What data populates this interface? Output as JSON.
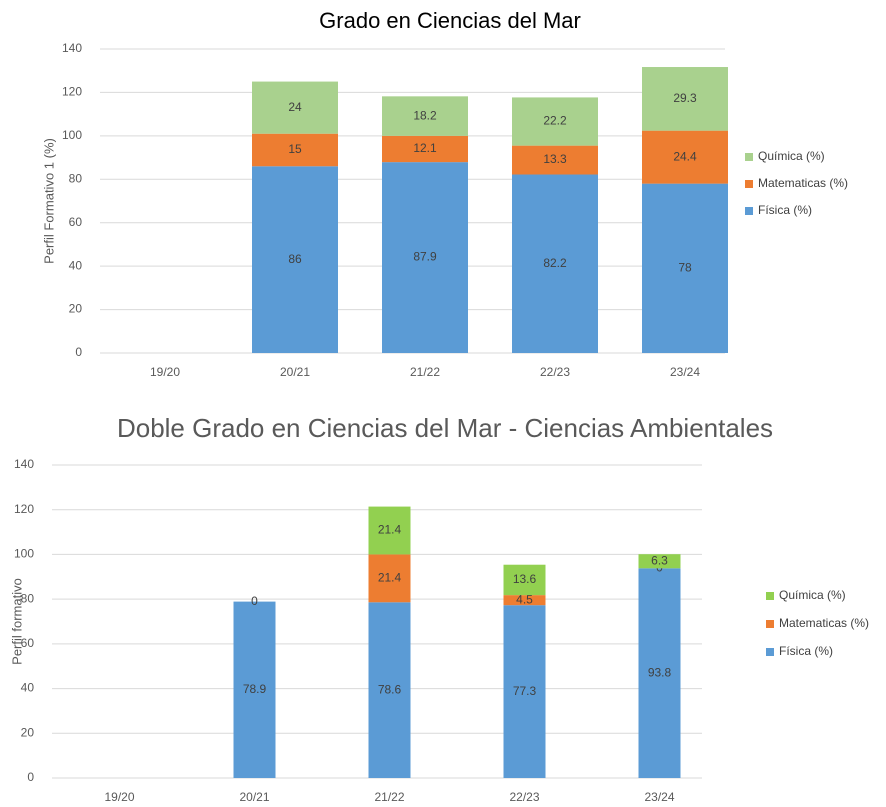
{
  "chart_data": [
    {
      "type": "bar",
      "stacked": true,
      "title": "Grado en Ciencias del Mar",
      "y_label": "Perfil Formativo 1  (%)",
      "categories": [
        "19/20",
        "20/21",
        "21/22",
        "22/23",
        "23/24"
      ],
      "series": [
        {
          "name": "Física (%)",
          "color": "#5b9bd5",
          "values": [
            null,
            86,
            87.9,
            82.2,
            78
          ]
        },
        {
          "name": "Matematicas (%)",
          "color": "#ed7d31",
          "values": [
            null,
            15,
            12.1,
            13.3,
            24.4
          ]
        },
        {
          "name": "Química (%)",
          "color": "#a9d18e",
          "values": [
            null,
            24,
            18.2,
            22.2,
            29.3
          ]
        }
      ],
      "ylim": [
        0,
        140
      ],
      "yticks": [
        0,
        20,
        40,
        60,
        80,
        100,
        120,
        140
      ],
      "grid": true,
      "legend": "right"
    },
    {
      "type": "bar",
      "stacked": true,
      "title": "Doble Grado en Ciencias del Mar - Ciencias Ambientales",
      "y_label": "Perfil formativo",
      "categories": [
        "19/20",
        "20/21",
        "21/22",
        "22/23",
        "23/24"
      ],
      "series": [
        {
          "name": "Física (%)",
          "color": "#5b9bd5",
          "values": [
            null,
            78.9,
            78.6,
            77.3,
            93.8
          ]
        },
        {
          "name": "Matematicas (%)",
          "color": "#ed7d31",
          "values": [
            null,
            0,
            21.4,
            4.5,
            0
          ]
        },
        {
          "name": "Química (%)",
          "color": "#92d050",
          "values": [
            null,
            null,
            21.4,
            13.6,
            6.3
          ]
        }
      ],
      "ylim": [
        0,
        140
      ],
      "yticks": [
        0,
        20,
        40,
        60,
        80,
        100,
        120,
        140
      ],
      "grid": true,
      "legend": "right"
    }
  ]
}
